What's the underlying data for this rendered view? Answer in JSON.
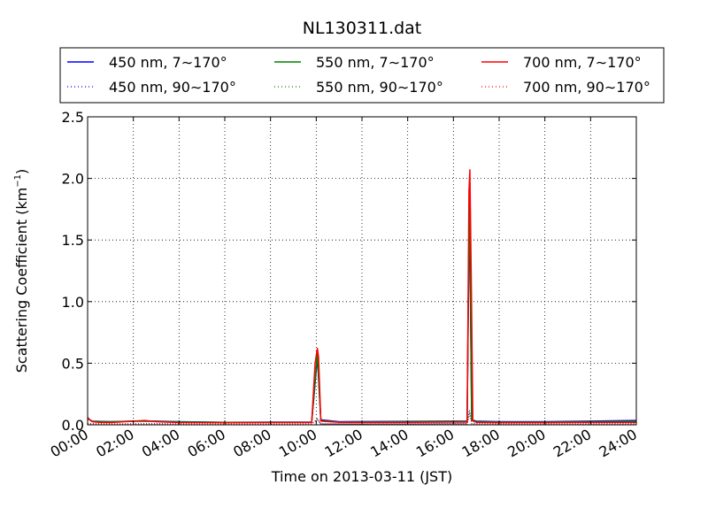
{
  "chart_data": {
    "type": "line",
    "title": "NL130311.dat",
    "xlabel": "Time on 2013-03-11 (JST)",
    "ylabel_main": "Scattering Coefficient (km",
    "ylabel_sup": "−1",
    "ylabel_tail": ")",
    "xlim_hours": [
      0,
      24
    ],
    "ylim": [
      0,
      2.5
    ],
    "x_ticks": [
      "00:00",
      "02:00",
      "04:00",
      "06:00",
      "08:00",
      "10:00",
      "12:00",
      "14:00",
      "16:00",
      "18:00",
      "20:00",
      "22:00",
      "24:00"
    ],
    "y_ticks": [
      "0.0",
      "0.5",
      "1.0",
      "1.5",
      "2.0",
      "2.5"
    ],
    "y_tick_values": [
      0.0,
      0.5,
      1.0,
      1.5,
      2.0,
      2.5
    ],
    "grid": true,
    "legend_position": "top",
    "series": [
      {
        "name": "450 nm, 7∼170°",
        "color": "#0000ff",
        "style": "solid",
        "points": [
          [
            0,
            0.05
          ],
          [
            0.2,
            0.03
          ],
          [
            1,
            0.025
          ],
          [
            2,
            0.03
          ],
          [
            3,
            0.03
          ],
          [
            4,
            0.025
          ],
          [
            6,
            0.02
          ],
          [
            8,
            0.022
          ],
          [
            9.8,
            0.022
          ],
          [
            10.05,
            0.55
          ],
          [
            10.2,
            0.04
          ],
          [
            11,
            0.025
          ],
          [
            14,
            0.028
          ],
          [
            16,
            0.03
          ],
          [
            16.6,
            0.03
          ],
          [
            16.7,
            1.82
          ],
          [
            16.8,
            0.04
          ],
          [
            17,
            0.03
          ],
          [
            18,
            0.025
          ],
          [
            20,
            0.025
          ],
          [
            22,
            0.03
          ],
          [
            24,
            0.035
          ]
        ]
      },
      {
        "name": "450 nm, 90∼170°",
        "color": "#0000ff",
        "style": "dotted",
        "points": [
          [
            0,
            0.01
          ],
          [
            1,
            0.008
          ],
          [
            3,
            0.01
          ],
          [
            6,
            0.006
          ],
          [
            9.8,
            0.007
          ],
          [
            10.05,
            0.05
          ],
          [
            10.2,
            0.008
          ],
          [
            14,
            0.009
          ],
          [
            16.6,
            0.01
          ],
          [
            16.7,
            0.12
          ],
          [
            16.8,
            0.01
          ],
          [
            20,
            0.009
          ],
          [
            24,
            0.01
          ]
        ]
      },
      {
        "name": "550 nm, 7∼170°",
        "color": "#008000",
        "style": "solid",
        "points": [
          [
            0,
            0.05
          ],
          [
            0.2,
            0.028
          ],
          [
            1,
            0.024
          ],
          [
            2,
            0.03
          ],
          [
            3,
            0.028
          ],
          [
            4,
            0.023
          ],
          [
            6,
            0.02
          ],
          [
            8,
            0.02
          ],
          [
            9.8,
            0.02
          ],
          [
            10.05,
            0.58
          ],
          [
            10.2,
            0.035
          ],
          [
            11,
            0.022
          ],
          [
            14,
            0.025
          ],
          [
            16,
            0.027
          ],
          [
            16.6,
            0.027
          ],
          [
            16.7,
            1.95
          ],
          [
            16.8,
            0.035
          ],
          [
            17,
            0.025
          ],
          [
            18,
            0.022
          ],
          [
            20,
            0.022
          ],
          [
            22,
            0.025
          ],
          [
            24,
            0.028
          ]
        ]
      },
      {
        "name": "550 nm, 90∼170°",
        "color": "#008000",
        "style": "dotted",
        "points": [
          [
            0,
            0.008
          ],
          [
            3,
            0.008
          ],
          [
            6,
            0.005
          ],
          [
            9.8,
            0.006
          ],
          [
            10.05,
            0.045
          ],
          [
            10.2,
            0.007
          ],
          [
            16.6,
            0.008
          ],
          [
            16.7,
            0.1
          ],
          [
            16.8,
            0.008
          ],
          [
            24,
            0.008
          ]
        ]
      },
      {
        "name": "700 nm, 7∼170°",
        "color": "#ff0000",
        "style": "solid",
        "points": [
          [
            0,
            0.06
          ],
          [
            0.1,
            0.04
          ],
          [
            0.2,
            0.025
          ],
          [
            0.5,
            0.02
          ],
          [
            1,
            0.018
          ],
          [
            2,
            0.03
          ],
          [
            2.5,
            0.035
          ],
          [
            3,
            0.025
          ],
          [
            4,
            0.018
          ],
          [
            6,
            0.017
          ],
          [
            8,
            0.018
          ],
          [
            9.8,
            0.018
          ],
          [
            9.95,
            0.5
          ],
          [
            10.05,
            0.62
          ],
          [
            10.1,
            0.55
          ],
          [
            10.15,
            0.3
          ],
          [
            10.2,
            0.03
          ],
          [
            11,
            0.02
          ],
          [
            14,
            0.02
          ],
          [
            16,
            0.022
          ],
          [
            16.6,
            0.022
          ],
          [
            16.68,
            1.9
          ],
          [
            16.72,
            2.07
          ],
          [
            16.78,
            1.2
          ],
          [
            16.85,
            0.03
          ],
          [
            17,
            0.02
          ],
          [
            18,
            0.018
          ],
          [
            20,
            0.018
          ],
          [
            22,
            0.02
          ],
          [
            24,
            0.02
          ]
        ]
      },
      {
        "name": "700 nm, 90∼170°",
        "color": "#ff0000",
        "style": "dotted",
        "points": [
          [
            0,
            0.008
          ],
          [
            3,
            0.007
          ],
          [
            6,
            0.005
          ],
          [
            9.8,
            0.005
          ],
          [
            10.05,
            0.04
          ],
          [
            10.2,
            0.006
          ],
          [
            16.6,
            0.006
          ],
          [
            16.72,
            0.09
          ],
          [
            16.8,
            0.006
          ],
          [
            24,
            0.006
          ]
        ]
      }
    ]
  }
}
